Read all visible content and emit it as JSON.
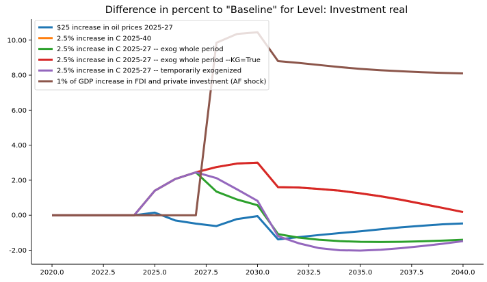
{
  "chart_data": {
    "type": "line",
    "title": "Difference in percent to \"Baseline\" for Level: Investment real",
    "xlabel": "",
    "ylabel": "",
    "xlim": [
      2019.0,
      2041.0
    ],
    "ylim": [
      -2.8,
      11.2
    ],
    "xticks": [
      2020.0,
      2022.5,
      2025.0,
      2027.5,
      2030.0,
      2032.5,
      2035.0,
      2037.5,
      2040.0
    ],
    "xtick_labels": [
      "2020.0",
      "2022.5",
      "2025.0",
      "2027.5",
      "2030.0",
      "2032.5",
      "2035.0",
      "2037.5",
      "2040.0"
    ],
    "yticks": [
      -2,
      0,
      2,
      4,
      6,
      8,
      10
    ],
    "ytick_labels": [
      "-2.00",
      "0.00",
      "2.00",
      "4.00",
      "6.00",
      "8.00",
      "10.00"
    ],
    "grid": false,
    "legend_position": "top-left",
    "x": [
      2020,
      2021,
      2022,
      2023,
      2024,
      2025,
      2026,
      2027,
      2028,
      2029,
      2030,
      2031,
      2032,
      2033,
      2034,
      2035,
      2036,
      2037,
      2038,
      2039,
      2040
    ],
    "series": [
      {
        "name": "$25 increase in oil prices 2025-27",
        "color": "#1f77b4",
        "values": [
          0,
          0,
          0,
          0,
          0,
          0.15,
          -0.3,
          -0.48,
          -0.62,
          -0.22,
          -0.05,
          -1.38,
          -1.25,
          -1.13,
          -1.02,
          -0.92,
          -0.8,
          -0.69,
          -0.6,
          -0.52,
          -0.47
        ]
      },
      {
        "name": "2.5% increase in C 2025-40",
        "color": "#ff7f0e",
        "values": [
          0,
          0,
          0,
          0,
          0,
          1.4,
          2.07,
          2.45,
          2.75,
          2.95,
          3.0,
          1.6,
          1.58,
          1.5,
          1.4,
          1.25,
          1.08,
          0.88,
          0.65,
          0.42,
          0.18
        ]
      },
      {
        "name": "2.5% increase in C 2025-27 -- exog whole period",
        "color": "#2ca02c",
        "values": [
          0,
          0,
          0,
          0,
          0,
          1.4,
          2.07,
          2.45,
          1.35,
          0.9,
          0.57,
          -1.08,
          -1.28,
          -1.4,
          -1.48,
          -1.52,
          -1.53,
          -1.52,
          -1.49,
          -1.45,
          -1.4
        ]
      },
      {
        "name": "2.5% increase in C 2025-27 -- exog whole period --KG=True",
        "color": "#d62728",
        "values": [
          0,
          0,
          0,
          0,
          0,
          1.4,
          2.07,
          2.45,
          2.75,
          2.95,
          3.0,
          1.6,
          1.58,
          1.5,
          1.4,
          1.25,
          1.08,
          0.88,
          0.65,
          0.42,
          0.18
        ]
      },
      {
        "name": "2.5% increase in C 2025-27 -- temporarily exogenized",
        "color": "#9467bd",
        "values": [
          0,
          0,
          0,
          0,
          0,
          1.4,
          2.07,
          2.45,
          2.12,
          1.48,
          0.82,
          -1.2,
          -1.6,
          -1.88,
          -2.0,
          -2.02,
          -1.97,
          -1.88,
          -1.76,
          -1.63,
          -1.48
        ]
      },
      {
        "name": "1% of GDP increase in FDI and private investment (AF shock)",
        "color": "#8c564b",
        "values": [
          0,
          0,
          0,
          0,
          0,
          0,
          0,
          0,
          9.85,
          10.35,
          10.45,
          8.8,
          8.7,
          8.58,
          8.46,
          8.36,
          8.28,
          8.22,
          8.17,
          8.13,
          8.1
        ]
      }
    ]
  }
}
